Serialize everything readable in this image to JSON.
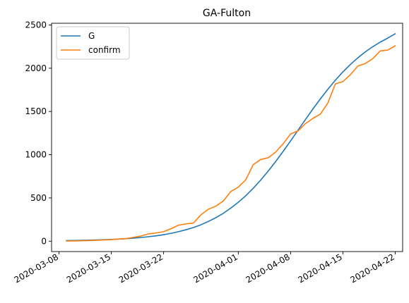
{
  "chart_data": {
    "type": "line",
    "title": "GA-Fulton",
    "xlabel": "",
    "ylabel": "",
    "x_ticks": [
      "2020-03-08",
      "2020-03-15",
      "2020-03-22",
      "2020-04-01",
      "2020-04-08",
      "2020-04-15",
      "2020-04-22"
    ],
    "y_ticks": [
      0,
      500,
      1000,
      1500,
      2000,
      2500
    ],
    "xlim": [
      "2020-03-07",
      "2020-04-23"
    ],
    "ylim": [
      -120,
      2520
    ],
    "grid": false,
    "legend_position": "top-left",
    "series": [
      {
        "name": "G",
        "color": "#1f77b4",
        "x": [
          "2020-03-09",
          "2020-03-10",
          "2020-03-11",
          "2020-03-12",
          "2020-03-13",
          "2020-03-14",
          "2020-03-15",
          "2020-03-16",
          "2020-03-17",
          "2020-03-18",
          "2020-03-19",
          "2020-03-20",
          "2020-03-21",
          "2020-03-22",
          "2020-03-23",
          "2020-03-24",
          "2020-03-25",
          "2020-03-26",
          "2020-03-27",
          "2020-03-28",
          "2020-03-29",
          "2020-03-30",
          "2020-03-31",
          "2020-04-01",
          "2020-04-02",
          "2020-04-03",
          "2020-04-04",
          "2020-04-05",
          "2020-04-06",
          "2020-04-07",
          "2020-04-08",
          "2020-04-09",
          "2020-04-10",
          "2020-04-11",
          "2020-04-12",
          "2020-04-13",
          "2020-04-14",
          "2020-04-15",
          "2020-04-16",
          "2020-04-17",
          "2020-04-18",
          "2020-04-19",
          "2020-04-20",
          "2020-04-21",
          "2020-04-22"
        ],
        "values": [
          7,
          8,
          10,
          12,
          14,
          17,
          20,
          24,
          29,
          35,
          43,
          52,
          62,
          75,
          91,
          110,
          132,
          158,
          190,
          228,
          272,
          323,
          383,
          450,
          526,
          612,
          707,
          810,
          921,
          1038,
          1160,
          1284,
          1408,
          1530,
          1647,
          1758,
          1862,
          1957,
          2043,
          2120,
          2189,
          2249,
          2302,
          2348,
          2398
        ]
      },
      {
        "name": "confirm",
        "color": "#ff7f0e",
        "x": [
          "2020-03-09",
          "2020-03-10",
          "2020-03-11",
          "2020-03-12",
          "2020-03-13",
          "2020-03-14",
          "2020-03-15",
          "2020-03-16",
          "2020-03-17",
          "2020-03-18",
          "2020-03-19",
          "2020-03-20",
          "2020-03-21",
          "2020-03-22",
          "2020-03-23",
          "2020-03-24",
          "2020-03-25",
          "2020-03-26",
          "2020-03-27",
          "2020-03-28",
          "2020-03-29",
          "2020-03-30",
          "2020-03-31",
          "2020-04-01",
          "2020-04-02",
          "2020-04-03",
          "2020-04-04",
          "2020-04-05",
          "2020-04-06",
          "2020-04-07",
          "2020-04-08",
          "2020-04-09",
          "2020-04-10",
          "2020-04-11",
          "2020-04-12",
          "2020-04-13",
          "2020-04-14",
          "2020-04-15",
          "2020-04-16",
          "2020-04-17",
          "2020-04-18",
          "2020-04-19",
          "2020-04-20",
          "2020-04-21",
          "2020-04-22"
        ],
        "values": [
          2,
          3,
          5,
          7,
          10,
          14,
          18,
          25,
          30,
          45,
          60,
          85,
          95,
          110,
          145,
          185,
          200,
          210,
          305,
          370,
          405,
          465,
          575,
          625,
          710,
          885,
          945,
          965,
          1030,
          1125,
          1240,
          1275,
          1360,
          1420,
          1470,
          1600,
          1820,
          1845,
          1925,
          2025,
          2055,
          2110,
          2200,
          2210,
          2260
        ]
      }
    ]
  }
}
